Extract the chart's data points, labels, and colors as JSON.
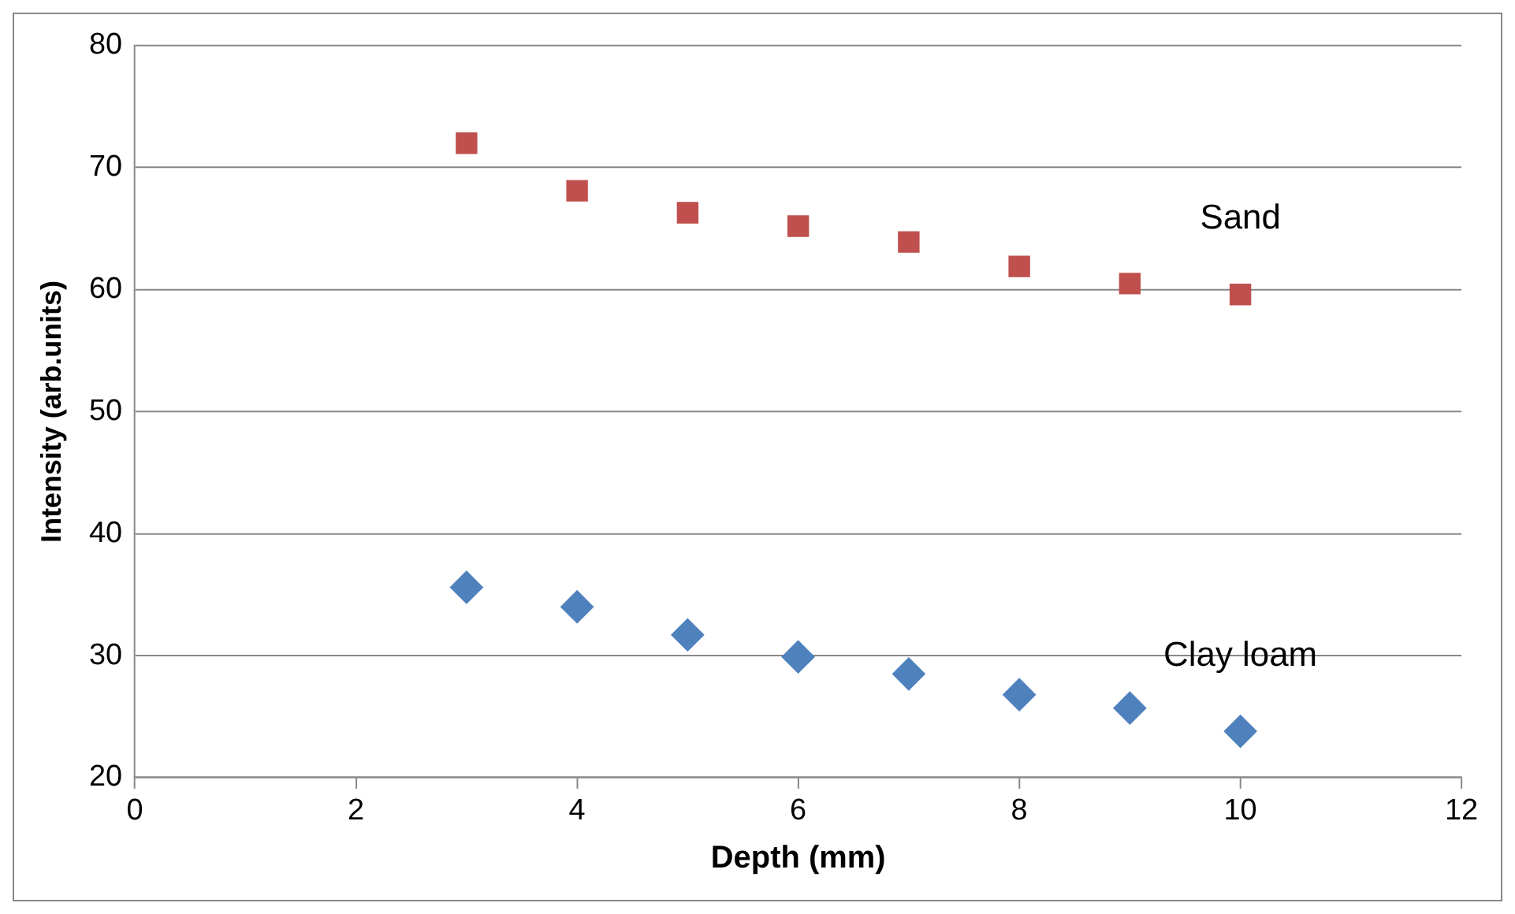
{
  "chart_data": {
    "type": "scatter",
    "xlabel": "Depth (mm)",
    "ylabel": "Intensity (arb.units)",
    "xlim": [
      0,
      12
    ],
    "xticks": [
      0,
      2,
      4,
      6,
      8,
      10,
      12
    ],
    "ylim": [
      20,
      80
    ],
    "yticks": [
      20,
      30,
      40,
      50,
      60,
      70,
      80
    ],
    "grid": "y",
    "legend": false,
    "series": [
      {
        "name": "Sand",
        "color": "#c0504d",
        "marker": "square",
        "x": [
          3,
          4,
          5,
          6,
          7,
          8,
          9,
          10
        ],
        "values": [
          72,
          68.1,
          66.3,
          65.2,
          63.9,
          61.9,
          60.5,
          59.6
        ]
      },
      {
        "name": "Clay loam",
        "color": "#4f81bd",
        "marker": "diamond",
        "x": [
          3,
          4,
          5,
          6,
          7,
          8,
          9,
          10
        ],
        "values": [
          35.6,
          34.0,
          31.7,
          29.9,
          28.5,
          26.8,
          25.7,
          23.8
        ]
      }
    ]
  }
}
